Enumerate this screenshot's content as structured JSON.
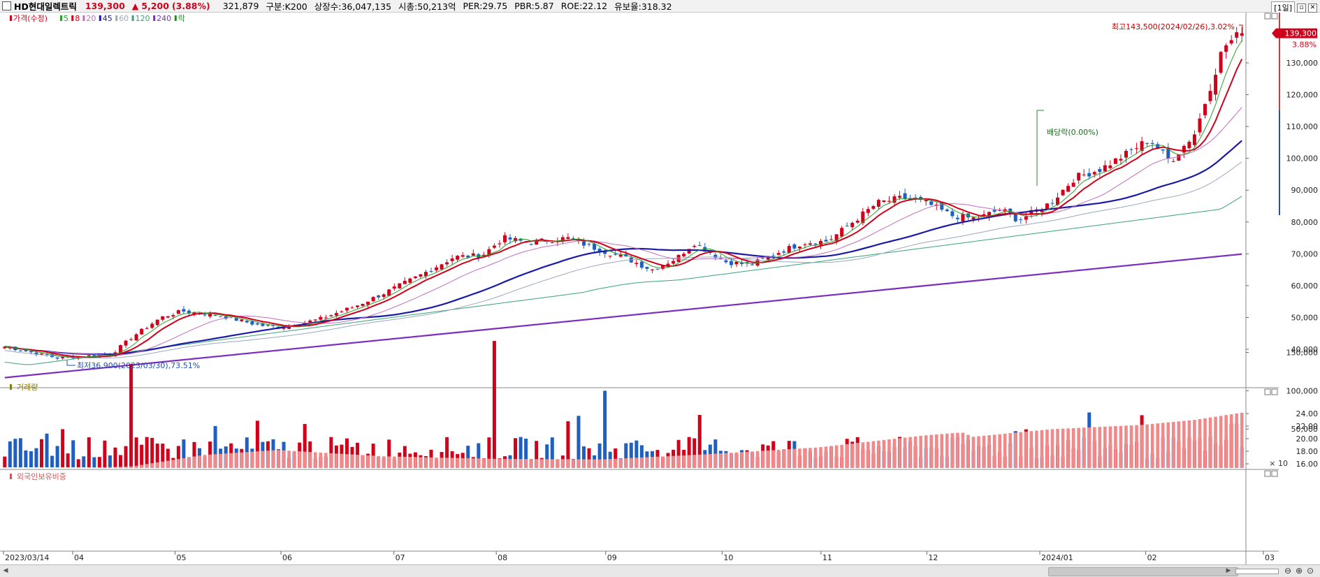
{
  "header": {
    "stock_name": "HD현대일렉트릭",
    "price": "139,300",
    "change_arrow": "▲",
    "change": "5,200",
    "change_pct": "(3.88%)",
    "volume": "321,879",
    "segment": "구분:K200",
    "shares": "상장수:36,047,135",
    "market_cap": "시총:50,213억",
    "per": "PER:29.75",
    "pbr": "PBR:5.87",
    "roe": "ROE:22.12",
    "retention": "유보율:318.32",
    "period": "[1일]",
    "colors": {
      "up": "#d0021b",
      "down": "#1f5fbf"
    }
  },
  "price_legend": [
    {
      "label": "가격(수정)",
      "color": "#d0021b"
    },
    {
      "label": "5",
      "color": "#2ca02c"
    },
    {
      "label": "8",
      "color": "#d0021b"
    },
    {
      "label": "20",
      "color": "#c06ec0"
    },
    {
      "label": "45",
      "color": "#1a1aa6"
    },
    {
      "label": "60",
      "color": "#9aa8c0"
    },
    {
      "label": "120",
      "color": "#3aa37a"
    },
    {
      "label": "240",
      "color": "#7a2fbf"
    },
    {
      "label": "락",
      "color": "#2a8a2a"
    }
  ],
  "annotations": {
    "high": "최고143,500(2024/02/26),3.02%",
    "low": "최저36,900(2023/03/30),73.51%",
    "dividend": "배당락(0.00%)",
    "last_price_tag": "139,300",
    "last_pct_tag": "3.88%"
  },
  "volume_panel": {
    "legend": "거래량",
    "unit": "× 10"
  },
  "foreign_panel": {
    "legend": "외국인보유비중"
  },
  "chart_data": [
    {
      "type": "candlestick",
      "title": "HD현대일렉트릭",
      "x_range": [
        "2023/03/14",
        "2024/02/29"
      ],
      "y_ticks": [
        40000,
        50000,
        60000,
        70000,
        80000,
        90000,
        100000,
        110000,
        120000,
        130000
      ],
      "y_tick_labels": [
        "40,000",
        "50,000",
        "60,000",
        "70,000",
        "80,000",
        "90,000",
        "100,000",
        "110,000",
        "120,000",
        "130,000"
      ],
      "ylim": [
        28000,
        148000
      ],
      "x_tick_labels": [
        "2023/03/14",
        "04",
        "05",
        "06",
        "07",
        "08",
        "09",
        "10",
        "11",
        "12",
        "2024/01",
        "02",
        "03"
      ],
      "close_path": [
        [
          "2023/03/14",
          41000
        ],
        [
          "2023/03/30",
          37200
        ],
        [
          "2023/04/14",
          38500
        ],
        [
          "2023/04/20",
          44000
        ],
        [
          "2023/04/28",
          50000
        ],
        [
          "2023/05/04",
          52000
        ],
        [
          "2023/05/15",
          50500
        ],
        [
          "2023/05/26",
          47500
        ],
        [
          "2023/06/02",
          47000
        ],
        [
          "2023/06/12",
          49500
        ],
        [
          "2023/06/22",
          53500
        ],
        [
          "2023/06/30",
          57500
        ],
        [
          "2023/07/10",
          63000
        ],
        [
          "2023/07/20",
          69000
        ],
        [
          "2023/07/28",
          69500
        ],
        [
          "2023/08/03",
          75000
        ],
        [
          "2023/08/10",
          73500
        ],
        [
          "2023/08/21",
          75000
        ],
        [
          "2023/08/31",
          71000
        ],
        [
          "2023/09/07",
          68500
        ],
        [
          "2023/09/14",
          65000
        ],
        [
          "2023/09/21",
          68500
        ],
        [
          "2023/09/26",
          73500
        ],
        [
          "2023/10/05",
          67500
        ],
        [
          "2023/10/12",
          66500
        ],
        [
          "2023/10/20",
          70500
        ],
        [
          "2023/10/27",
          73500
        ],
        [
          "2023/11/03",
          74000
        ],
        [
          "2023/11/10",
          80000
        ],
        [
          "2023/11/17",
          86000
        ],
        [
          "2023/11/24",
          87500
        ],
        [
          "2023/12/01",
          86000
        ],
        [
          "2023/12/08",
          82000
        ],
        [
          "2023/12/15",
          81000
        ],
        [
          "2023/12/22",
          84000
        ],
        [
          "2023/12/27",
          80500
        ],
        [
          "2024/01/05",
          86000
        ],
        [
          "2024/01/12",
          94000
        ],
        [
          "2024/01/19",
          96500
        ],
        [
          "2024/01/26",
          101000
        ],
        [
          "2024/02/02",
          106000
        ],
        [
          "2024/02/08",
          99000
        ],
        [
          "2024/02/15",
          108000
        ],
        [
          "2024/02/20",
          125000
        ],
        [
          "2024/02/23",
          135000
        ],
        [
          "2024/02/28",
          139300
        ]
      ],
      "ma_end_values": {
        "5": 131000,
        "8": 126500,
        "20": 113000,
        "45": 100000,
        "60": 96000,
        "120": 85000,
        "240": 70000
      },
      "ma_start_values": {
        "20": 41500,
        "45": 39000,
        "60": 38000,
        "120": 34000,
        "240": 31000
      },
      "high": {
        "value": 143500,
        "date": "2024/02/26"
      },
      "low": {
        "value": 36900,
        "date": "2023/03/30"
      },
      "last": 139300
    },
    {
      "type": "bar",
      "title": "거래량",
      "y_tick_labels": [
        "50,000",
        "100,000",
        "150,000"
      ],
      "ylim": [
        0,
        170000
      ],
      "notable_values": {
        "2023/04/20": 135000,
        "2023/08/01": 165000,
        "2023/09/01": 100000,
        "2024/02/26": 57000
      },
      "typical_range": [
        10000,
        40000
      ]
    },
    {
      "type": "bar",
      "title": "외국인보유비중",
      "y_tick_labels": [
        "16.00",
        "18.00",
        "20.00",
        "22.00",
        "24.00"
      ],
      "ylim": [
        14.8,
        25.2
      ],
      "path": [
        [
          "2023/03/14",
          14.9
        ],
        [
          "2023/04/20",
          15.6
        ],
        [
          "2023/05/10",
          17.4
        ],
        [
          "2023/05/31",
          18.2
        ],
        [
          "2023/06/30",
          17.2
        ],
        [
          "2023/07/31",
          16.8
        ],
        [
          "2023/08/31",
          16.7
        ],
        [
          "2023/09/29",
          17.5
        ],
        [
          "2023/10/31",
          18.6
        ],
        [
          "2023/11/30",
          20.5
        ],
        [
          "2023/12/11",
          21.0
        ],
        [
          "2023/12/14",
          20.3
        ],
        [
          "2024/01/05",
          21.5
        ],
        [
          "2024/01/31",
          22.2
        ],
        [
          "2024/02/15",
          23.0
        ],
        [
          "2024/02/29",
          24.2
        ]
      ]
    }
  ]
}
